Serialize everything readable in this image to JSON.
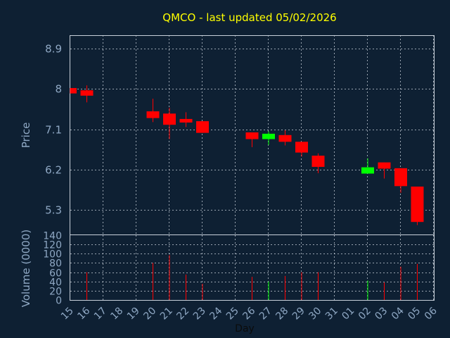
{
  "chart_data": {
    "type": "candlestick",
    "title": "QMCO - last updated 05/02/2026",
    "xlabel": "Day",
    "price_panel": {
      "ylabel": "Price",
      "ylim": [
        4.75,
        9.2
      ],
      "yticks": [
        "8.9",
        "8",
        "7.1",
        "6.2",
        "5.3"
      ],
      "ytick_values": [
        8.9,
        8.0,
        7.1,
        6.2,
        5.3
      ]
    },
    "volume_panel": {
      "ylabel": "Volume (0000)",
      "ylim": [
        0,
        140
      ],
      "yticks": [
        "0",
        "20",
        "40",
        "60",
        "80",
        "100",
        "120",
        "140"
      ],
      "ytick_values": [
        0,
        20,
        40,
        60,
        80,
        100,
        120,
        140
      ]
    },
    "days": [
      "15",
      "16",
      "17",
      "18",
      "19",
      "20",
      "21",
      "22",
      "23",
      "24",
      "25",
      "26",
      "27",
      "28",
      "29",
      "30",
      "31",
      "01",
      "02",
      "03",
      "04",
      "05",
      "06"
    ],
    "candles": [
      {
        "day": 0,
        "open": 8.02,
        "close": 7.9,
        "high": 8.02,
        "low": 7.9,
        "volume": 0
      },
      {
        "day": 1,
        "open": 7.97,
        "close": 7.85,
        "high": 8.08,
        "low": 7.7,
        "volume": 60
      },
      {
        "day": 5,
        "open": 7.5,
        "close": 7.35,
        "high": 7.78,
        "low": 7.26,
        "volume": 80
      },
      {
        "day": 6,
        "open": 7.45,
        "close": 7.2,
        "high": 7.58,
        "low": 6.88,
        "volume": 97
      },
      {
        "day": 7,
        "open": 7.33,
        "close": 7.25,
        "high": 7.48,
        "low": 7.15,
        "volume": 55
      },
      {
        "day": 8,
        "open": 7.28,
        "close": 7.02,
        "high": 7.28,
        "low": 7.02,
        "volume": 35
      },
      {
        "day": 11,
        "open": 7.03,
        "close": 6.88,
        "high": 7.03,
        "low": 6.7,
        "volume": 50
      },
      {
        "day": 12,
        "open": 6.88,
        "close": 7.0,
        "high": 7.05,
        "low": 6.75,
        "volume": 40
      },
      {
        "day": 13,
        "open": 6.97,
        "close": 6.82,
        "high": 7.08,
        "low": 6.74,
        "volume": 52
      },
      {
        "day": 14,
        "open": 6.82,
        "close": 6.58,
        "high": 6.82,
        "low": 6.49,
        "volume": 60
      },
      {
        "day": 15,
        "open": 6.51,
        "close": 6.26,
        "high": 6.56,
        "low": 6.12,
        "volume": 60
      },
      {
        "day": 18,
        "open": 6.11,
        "close": 6.25,
        "high": 6.45,
        "low": 6.11,
        "volume": 42
      },
      {
        "day": 19,
        "open": 6.36,
        "close": 6.22,
        "high": 6.36,
        "low": 6.0,
        "volume": 38
      },
      {
        "day": 20,
        "open": 6.23,
        "close": 5.83,
        "high": 6.23,
        "low": 5.68,
        "volume": 72
      },
      {
        "day": 21,
        "open": 5.82,
        "close": 5.03,
        "high": 5.82,
        "low": 4.96,
        "volume": 78
      }
    ],
    "colors": {
      "background": "#0e2033",
      "title": "#ffff00",
      "axis_text": "#8fa8c4",
      "up": "#00ff00",
      "down": "#ff0000",
      "grid": "#c8d0da"
    },
    "grid": true
  }
}
